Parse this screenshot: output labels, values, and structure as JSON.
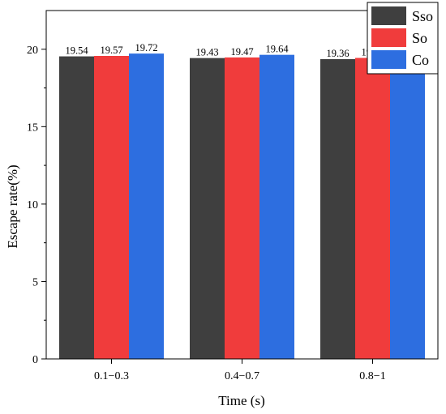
{
  "chart_data": {
    "type": "bar",
    "categories": [
      "0.1−0.3",
      "0.4−0.7",
      "0.8−1"
    ],
    "series": [
      {
        "name": "Sso",
        "values": [
          19.54,
          19.43,
          19.36
        ],
        "color": "#3f3f3f"
      },
      {
        "name": "So",
        "values": [
          19.57,
          19.47,
          19.44
        ],
        "color": "#f03c3c"
      },
      {
        "name": "Co",
        "values": [
          19.72,
          19.64,
          19.69
        ],
        "color": "#2d6ee0"
      }
    ],
    "data_labels": [
      [
        "19.54",
        "19.43",
        "19.36"
      ],
      [
        "19.57",
        "19.47",
        "19.44"
      ],
      [
        "19.72",
        "19.64",
        "19.69"
      ]
    ],
    "xlabel": "Time (s)",
    "ylabel": "Escape rate(%)",
    "ylim": [
      0,
      22.5
    ],
    "yticks": [
      0,
      5,
      10,
      15,
      20
    ],
    "grid": false,
    "legend_position": "top-right"
  }
}
